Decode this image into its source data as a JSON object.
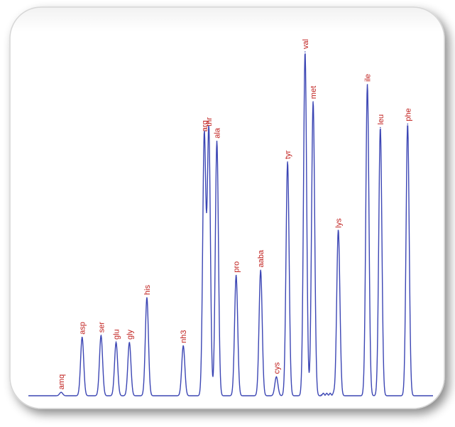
{
  "chart_data": {
    "type": "line",
    "title": "",
    "xlabel": "",
    "ylabel": "",
    "grid": false,
    "legend": "none",
    "x_range": [
      0,
      100
    ],
    "y_range": [
      0,
      100
    ],
    "line_color": "#3c46b4",
    "label_color": "#c0201e",
    "peaks": [
      {
        "label": "amq",
        "x": 5.3,
        "height": 1.0
      },
      {
        "label": "asp",
        "x": 11.3,
        "height": 17.0
      },
      {
        "label": "ser",
        "x": 16.7,
        "height": 17.5
      },
      {
        "label": "glu",
        "x": 21.0,
        "height": 15.5
      },
      {
        "label": "gly",
        "x": 24.8,
        "height": 15.5
      },
      {
        "label": "his",
        "x": 29.8,
        "height": 28.5
      },
      {
        "label": "nh3",
        "x": 40.2,
        "height": 14.5
      },
      {
        "label": "arg",
        "x": 46.2,
        "height": 76.0
      },
      {
        "label": "thr",
        "x": 47.5,
        "height": 77.5
      },
      {
        "label": "ala",
        "x": 49.8,
        "height": 74.0
      },
      {
        "label": "pro",
        "x": 55.3,
        "height": 35.0
      },
      {
        "label": "aaba",
        "x": 62.3,
        "height": 36.5
      },
      {
        "label": "cys",
        "x": 66.8,
        "height": 5.5
      },
      {
        "label": "tyr",
        "x": 70.0,
        "height": 68.0
      },
      {
        "label": "val",
        "x": 75.0,
        "height": 100.0
      },
      {
        "label": "met",
        "x": 77.3,
        "height": 85.5
      },
      {
        "label": "lys",
        "x": 84.5,
        "height": 48.0
      },
      {
        "label": "ile",
        "x": 92.8,
        "height": 90.5
      },
      {
        "label": "leu",
        "x": 96.5,
        "height": 78.0
      },
      {
        "label": "phe",
        "x": 104.3,
        "height": 79.0
      }
    ]
  }
}
